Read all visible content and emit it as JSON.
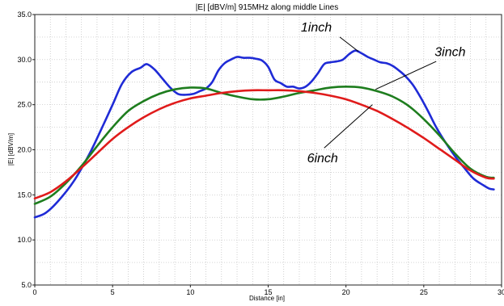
{
  "chart_data": {
    "type": "line",
    "title": "|E| [dBV/m] 915MHz along middle Lines",
    "xlabel": "Distance [in]",
    "ylabel": "|E| [dBV/m]",
    "xlim": [
      0,
      30
    ],
    "ylim": [
      5,
      35
    ],
    "xticks": [
      "0",
      "5",
      "10",
      "15",
      "20",
      "25",
      "30"
    ],
    "yticks": [
      "5.0",
      "10.0",
      "15.0",
      "20.0",
      "25.0",
      "30.0",
      "35.0"
    ],
    "xtick_values": [
      0,
      5,
      10,
      15,
      20,
      25,
      30
    ],
    "ytick_values": [
      5,
      10,
      15,
      20,
      25,
      30,
      35
    ],
    "grid": true,
    "series": [
      {
        "name": "1inch",
        "color": "#1f2bd6",
        "x": [
          0,
          0.7,
          1.5,
          2.5,
          3.5,
          4.2,
          5,
          5.6,
          6.2,
          6.8,
          7.2,
          7.7,
          8.2,
          8.7,
          9.2,
          9.7,
          10.2,
          10.6,
          11,
          11.4,
          11.8,
          12.2,
          12.6,
          13,
          13.4,
          13.8,
          14.2,
          14.6,
          15,
          15.4,
          15.8,
          16.2,
          16.6,
          17,
          17.4,
          17.8,
          18.2,
          18.6,
          19,
          19.4,
          19.8,
          20.2,
          20.6,
          21,
          21.4,
          21.8,
          22.2,
          22.6,
          23,
          23.4,
          23.8,
          24.3,
          24.8,
          25.3,
          25.8,
          26.4,
          27,
          27.6,
          28.2,
          28.8,
          29.2,
          29.5
        ],
        "y": [
          12.5,
          13,
          14.3,
          16.5,
          19.5,
          22,
          25,
          27.3,
          28.6,
          29.1,
          29.5,
          28.9,
          27.9,
          26.9,
          26.2,
          26.1,
          26.2,
          26.5,
          26.8,
          27.5,
          28.8,
          29.6,
          30.0,
          30.3,
          30.2,
          30.2,
          30.1,
          29.9,
          29.2,
          27.8,
          27.4,
          27.0,
          27.0,
          26.8,
          27.0,
          27.6,
          28.5,
          29.5,
          29.7,
          29.8,
          30.0,
          30.6,
          31.0,
          30.7,
          30.3,
          30.0,
          29.7,
          29.6,
          29.3,
          28.8,
          28.2,
          27.2,
          25.8,
          24.2,
          22.5,
          20.8,
          19.3,
          18,
          16.8,
          16.1,
          15.7,
          15.6
        ]
      },
      {
        "name": "3inch",
        "color": "#1e7d1e",
        "x": [
          0,
          1,
          2,
          3,
          4,
          5,
          6,
          7,
          8,
          9,
          10,
          11,
          12,
          13,
          14,
          15,
          16,
          17,
          18,
          19,
          20,
          21,
          22,
          23,
          24,
          25,
          26,
          27,
          28,
          29,
          29.5
        ],
        "y": [
          14.0,
          14.8,
          16.3,
          18.2,
          20.4,
          22.5,
          24.3,
          25.4,
          26.2,
          26.7,
          26.9,
          26.8,
          26.3,
          25.9,
          25.6,
          25.6,
          25.9,
          26.3,
          26.6,
          26.9,
          27.0,
          26.9,
          26.5,
          25.9,
          24.9,
          23.4,
          21.6,
          19.6,
          17.9,
          17.0,
          16.9
        ]
      },
      {
        "name": "6inch",
        "color": "#e01b1b",
        "x": [
          0,
          1,
          2,
          3,
          4,
          5,
          6,
          7,
          8,
          9,
          10,
          11,
          12,
          13,
          14,
          15,
          16,
          17,
          18,
          19,
          20,
          21,
          22,
          23,
          24,
          25,
          26,
          27,
          28,
          29,
          29.5
        ],
        "y": [
          14.6,
          15.3,
          16.5,
          18.0,
          19.6,
          21.2,
          22.5,
          23.6,
          24.5,
          25.2,
          25.7,
          26.0,
          26.3,
          26.5,
          26.6,
          26.6,
          26.6,
          26.5,
          26.3,
          26.0,
          25.6,
          25.0,
          24.3,
          23.4,
          22.4,
          21.3,
          20.1,
          18.9,
          17.7,
          16.9,
          16.8
        ]
      }
    ],
    "annotations": [
      {
        "text": "1inch",
        "label_x": 17.1,
        "label_y": 33.1,
        "arrow_from": [
          19.6,
          32.5
        ],
        "arrow_to": [
          20.8,
          30.9
        ]
      },
      {
        "text": "3inch",
        "label_x": 25.7,
        "label_y": 30.4,
        "arrow_from": [
          25.8,
          29.8
        ],
        "arrow_to": [
          21.9,
          26.7
        ]
      },
      {
        "text": "6inch",
        "label_x": 17.5,
        "label_y": 18.6,
        "arrow_from": [
          18.6,
          20.2
        ],
        "arrow_to": [
          21.7,
          25.0
        ]
      }
    ]
  }
}
